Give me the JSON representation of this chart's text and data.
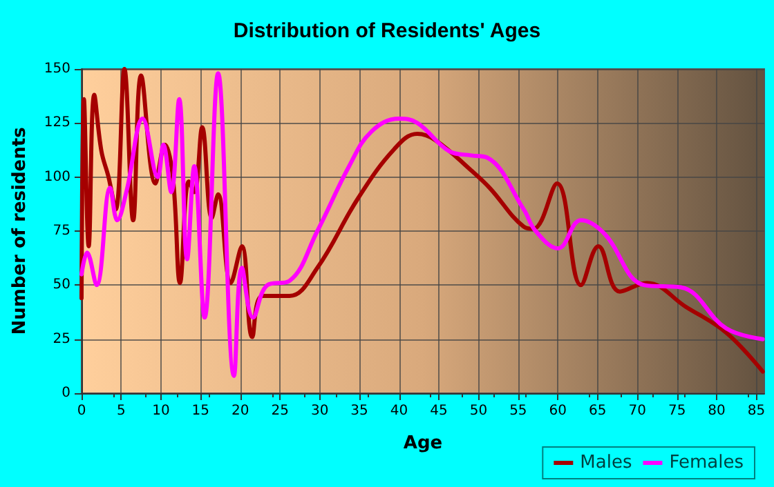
{
  "chart_data": {
    "type": "line",
    "title": "Distribution of Residents' Ages",
    "xlabel": "Age",
    "ylabel": "Number of residents",
    "xlim": [
      0,
      86
    ],
    "xticks": [
      0,
      5,
      10,
      15,
      20,
      25,
      30,
      35,
      40,
      45,
      50,
      55,
      60,
      65,
      70,
      75,
      80,
      85
    ],
    "ylim": [
      0,
      150
    ],
    "yticks": [
      0,
      25,
      50,
      75,
      100,
      125,
      150
    ],
    "grid": true,
    "legend": "bottom right",
    "marker": "none",
    "line_style": "solid",
    "series": [
      {
        "name": "Males",
        "color": "#a50000",
        "x": [
          0,
          0.3,
          0.9,
          1.6,
          2.5,
          3.4,
          4.3,
          5.4,
          6.5,
          7.5,
          9.3,
          10.5,
          11.5,
          12.4,
          13.5,
          14.2,
          15.2,
          16.4,
          17.2,
          18.8,
          20.2,
          21.5,
          22.8,
          26.2,
          29.7,
          34.8,
          39.4,
          42.3,
          44.6,
          49.1,
          51.4,
          55.7,
          56.9,
          59.9,
          62.9,
          65.1,
          67.8,
          71.2,
          76.1,
          81.2,
          85.8
        ],
        "values": [
          44,
          136,
          68,
          138,
          112,
          100,
          85,
          150,
          80,
          147,
          97,
          115,
          100,
          51,
          98,
          93,
          123,
          81,
          92,
          51,
          68,
          26,
          45,
          45,
          58,
          90,
          113,
          120,
          117,
          103,
          95,
          77,
          76,
          97,
          50,
          68,
          47,
          51,
          40,
          28,
          10
        ]
      },
      {
        "name": "Females",
        "color": "#ff00ff",
        "x": [
          0,
          0.7,
          1.9,
          3.6,
          4.5,
          5.7,
          7.7,
          9.6,
          10.3,
          11.3,
          12.3,
          13.3,
          14.2,
          15.5,
          17.2,
          19.2,
          20.2,
          21.6,
          23.4,
          26.2,
          29.7,
          33.7,
          36.5,
          40,
          42.3,
          46.3,
          49.1,
          51.1,
          55.7,
          57.2,
          60,
          62.9,
          65.8,
          70.9,
          75.5,
          81.2,
          85.8
        ],
        "values": [
          55,
          65,
          50,
          95,
          80,
          94,
          127,
          100,
          115,
          93,
          136,
          62,
          105,
          35,
          148,
          8,
          58,
          35,
          50,
          52,
          75,
          105,
          121,
          127,
          125,
          112,
          110,
          109,
          85,
          75,
          67,
          80,
          74,
          50,
          49,
          30,
          25
        ]
      }
    ]
  }
}
